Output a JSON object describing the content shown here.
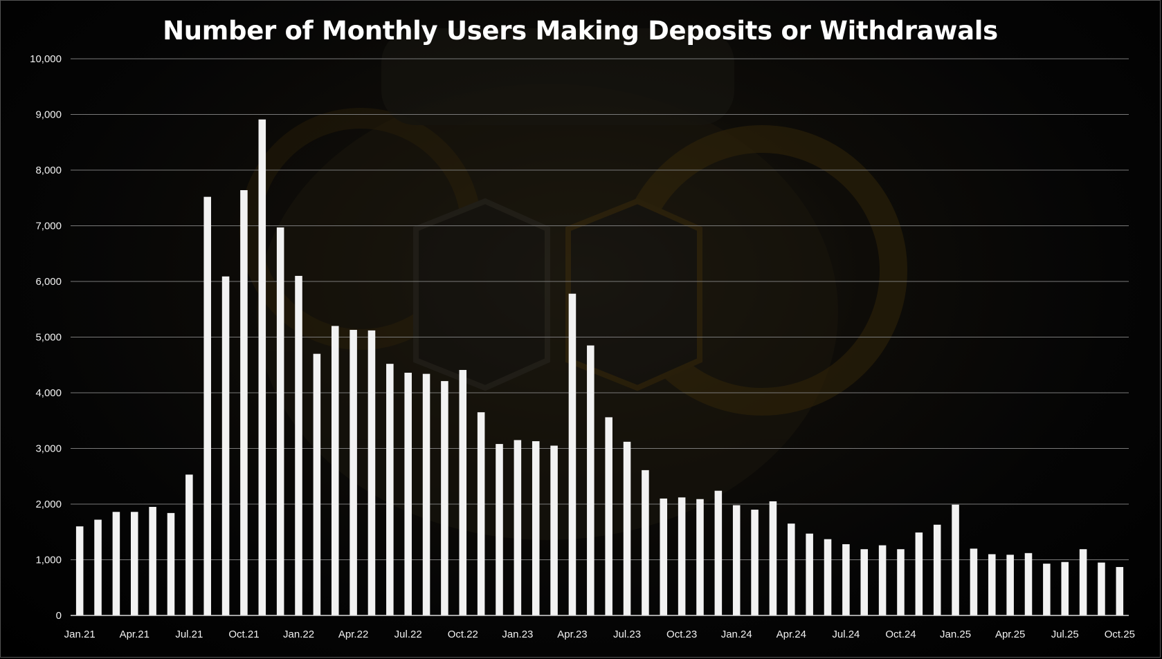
{
  "chart_data": {
    "type": "bar",
    "title": "Number of Monthly Users Making Deposits or Withdrawals",
    "xlabel": "",
    "ylabel": "",
    "ylim": [
      0,
      10000
    ],
    "yticks": [
      0,
      1000,
      2000,
      3000,
      4000,
      5000,
      6000,
      7000,
      8000,
      9000,
      10000
    ],
    "ytick_labels": [
      "0",
      "1,000",
      "2,000",
      "3,000",
      "4,000",
      "5,000",
      "6,000",
      "7,000",
      "8,000",
      "9,000",
      "10,000"
    ],
    "grid": true,
    "legend": "none",
    "bar_color": "#f2f2f2",
    "grid_color": "#7a7a7a",
    "categories": [
      "Jan.21",
      "Feb.21",
      "Mar.21",
      "Apr.21",
      "May.21",
      "Jun.21",
      "Jul.21",
      "Aug.21",
      "Sep.21",
      "Oct.21",
      "Nov.21",
      "Dec.21",
      "Jan.22",
      "Feb.22",
      "Mar.22",
      "Apr.22",
      "May.22",
      "Jun.22",
      "Jul.22",
      "Aug.22",
      "Sep.22",
      "Oct.22",
      "Nov.22",
      "Dec.22",
      "Jan.23",
      "Feb.23",
      "Mar.23",
      "Apr.23",
      "May.23",
      "Jun.23",
      "Jul.23",
      "Aug.23",
      "Sep.23",
      "Oct.23",
      "Nov.23",
      "Dec.23",
      "Jan.24",
      "Feb.24",
      "Mar.24",
      "Apr.24",
      "May.24",
      "Jun.24",
      "Jul.24",
      "Aug.24",
      "Sep.24",
      "Oct.24",
      "Nov.24",
      "Dec.24",
      "Jan.25",
      "Feb.25",
      "Mar.25",
      "Apr.25",
      "May.25",
      "Jun.25",
      "Jul.25",
      "Aug.25",
      "Sep.25",
      "Oct.25"
    ],
    "xtick_labels_shown": [
      "Jan.21",
      "Apr.21",
      "Jul.21",
      "Oct.21",
      "Jan.22",
      "Apr.22",
      "Jul.22",
      "Oct.22",
      "Jan.23",
      "Apr.23",
      "Jul.23",
      "Oct.23",
      "Jan.24",
      "Apr.24",
      "Jul.24",
      "Oct.24",
      "Jan.25",
      "Apr.25",
      "Jul.25",
      "Oct.25"
    ],
    "values": [
      1600,
      1720,
      1860,
      1860,
      1950,
      1840,
      2530,
      7520,
      6090,
      7640,
      8910,
      6970,
      6100,
      4700,
      5200,
      5130,
      5120,
      4520,
      4360,
      4340,
      4210,
      4410,
      3650,
      3080,
      3150,
      3130,
      3050,
      5780,
      4850,
      3560,
      3120,
      2610,
      2100,
      2120,
      2090,
      2240,
      1980,
      1900,
      2050,
      1650,
      1470,
      1370,
      1280,
      1190,
      1260,
      1190,
      1490,
      1630,
      1990,
      1200,
      1100,
      1090,
      1120,
      930,
      960,
      1190,
      950,
      870
    ]
  }
}
